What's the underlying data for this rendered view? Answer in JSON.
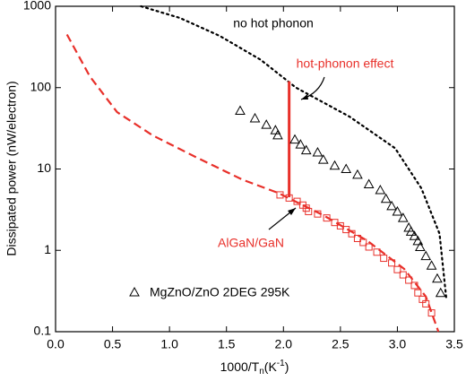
{
  "chart_data": {
    "type": "scatter",
    "y_label": "Dissipated power (nW/electron)",
    "x_label_parts": [
      "1000/T",
      "n",
      "(K",
      "-1",
      ")"
    ],
    "xlim": [
      0,
      3.5
    ],
    "xticks": [
      {
        "value": 0,
        "label": "0.0"
      },
      0.5,
      {
        "value": 1,
        "label": "1.0"
      },
      1.5,
      {
        "value": 2,
        "label": "2.0"
      },
      2.5,
      {
        "value": 3,
        "label": "3.0"
      },
      3.5
    ],
    "ylim": [
      0.1,
      1000
    ],
    "yticks": [
      0.1,
      1,
      10,
      100,
      1000
    ],
    "log_y": true,
    "series": [
      {
        "name": "no hot phonon",
        "style": "dotted",
        "color": "#000000",
        "x": [
          0.75,
          1.09,
          1.44,
          1.8,
          2.11,
          2.58,
          2.98,
          3.21,
          3.37,
          3.43
        ],
        "values": [
          1000,
          720,
          433,
          220,
          100,
          44,
          18,
          5.8,
          1.6,
          0.25
        ]
      },
      {
        "style": "dashed",
        "color": "#e8302a",
        "x": [
          0.1,
          0.3,
          0.54,
          0.85,
          1.24,
          1.64,
          1.95,
          2.35,
          2.74,
          3.06,
          3.25,
          3.36
        ],
        "values": [
          450,
          138,
          50,
          26,
          13.8,
          7.4,
          5.1,
          2.7,
          1.3,
          0.59,
          0.27,
          0.1
        ]
      },
      {
        "name": "hot-phonon effect",
        "style": "solid",
        "color": "#e8302a",
        "x": [
          2.05,
          2.05
        ],
        "values": [
          4.5,
          120
        ]
      },
      {
        "name": "AlGaN/GaN",
        "style": "square",
        "color": "#e8302a",
        "x": [
          1.97,
          2.05,
          2.12,
          2.17,
          2.2,
          2.22,
          2.3,
          2.38,
          2.45,
          2.5,
          2.55,
          2.6,
          2.65,
          2.7,
          2.75,
          2.82,
          2.88,
          2.95,
          3.0,
          3.05,
          3.1,
          3.15,
          3.18,
          3.22,
          3.25,
          3.3
        ],
        "values": [
          4.8,
          4.4,
          4.0,
          3.6,
          3.3,
          3.0,
          2.8,
          2.5,
          2.2,
          2.0,
          1.8,
          1.6,
          1.4,
          1.25,
          1.1,
          0.95,
          0.8,
          0.7,
          0.58,
          0.5,
          0.43,
          0.37,
          0.3,
          0.25,
          0.22,
          0.17
        ]
      },
      {
        "name": "MgZnO/ZnO 2DEG 295K",
        "style": "triangle",
        "color": "#000000",
        "in_legend": true,
        "x": [
          1.62,
          1.75,
          1.85,
          1.93,
          1.95,
          2.1,
          2.15,
          2.2,
          2.3,
          2.35,
          2.45,
          2.55,
          2.65,
          2.75,
          2.85,
          2.9,
          2.95,
          3.0,
          3.05,
          3.1,
          3.12,
          3.15,
          3.18,
          3.2,
          3.25,
          3.3,
          3.35,
          3.38
        ],
        "values": [
          52,
          42,
          35,
          30,
          26,
          23,
          20,
          17,
          16,
          13,
          11,
          10,
          8.5,
          6.5,
          5.5,
          4.3,
          3.5,
          3.0,
          2.5,
          1.9,
          1.7,
          1.5,
          1.3,
          1.1,
          0.85,
          0.65,
          0.45,
          0.3
        ]
      }
    ]
  }
}
